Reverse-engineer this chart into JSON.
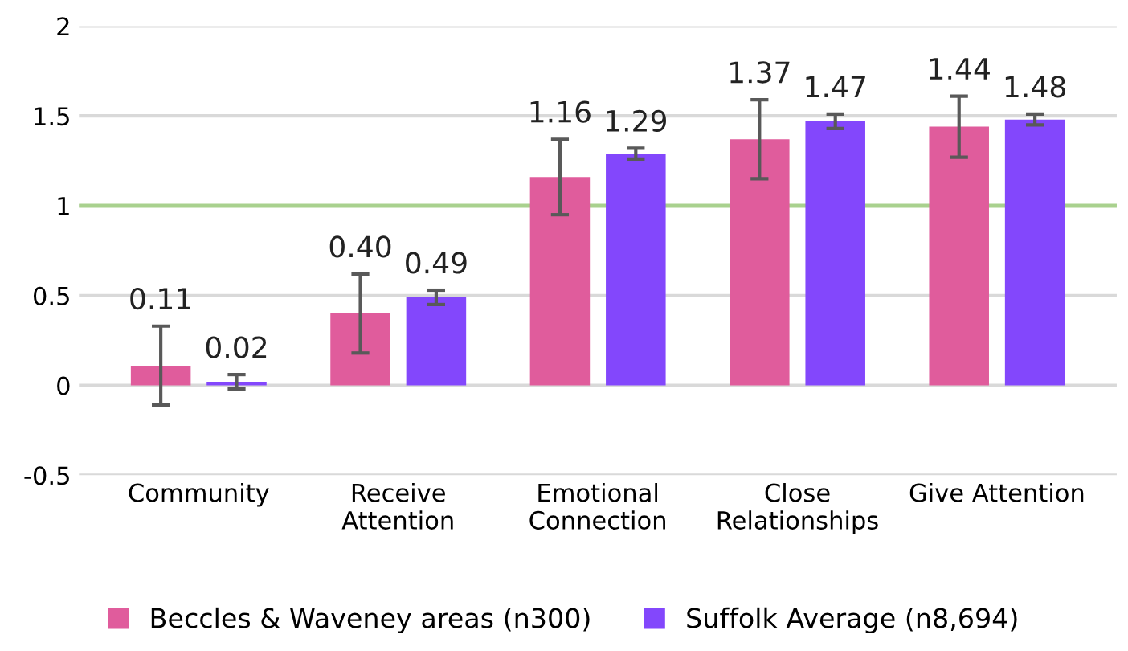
{
  "chart_data": {
    "type": "bar",
    "categories": [
      "Community",
      "Receive\nAttention",
      "Emotional\nConnection",
      "Close\nRelationships",
      "Give Attention"
    ],
    "series": [
      {
        "name": "Beccles & Waveney areas (n300)",
        "color": "#e05c9c",
        "values": [
          0.11,
          0.4,
          1.16,
          1.37,
          1.44
        ],
        "errors": [
          0.22,
          0.22,
          0.21,
          0.22,
          0.17
        ],
        "value_labels": [
          "0.11",
          "0.40",
          "1.16",
          "1.37",
          "1.44"
        ]
      },
      {
        "name": "Suffolk Average (n8,694)",
        "color": "#8347fc",
        "values": [
          0.02,
          0.49,
          1.29,
          1.47,
          1.48
        ],
        "errors": [
          0.04,
          0.04,
          0.03,
          0.04,
          0.03
        ],
        "value_labels": [
          "0.02",
          "0.49",
          "1.29",
          "1.47",
          "1.48"
        ]
      }
    ],
    "ylim": [
      -0.5,
      2
    ],
    "yticks": [
      -0.5,
      0,
      0.5,
      1,
      1.5,
      2
    ],
    "ref_lines": [
      {
        "axis": "y",
        "value": 1,
        "color": "#a9d18e"
      }
    ],
    "grid": "y",
    "legend": "bottom"
  }
}
